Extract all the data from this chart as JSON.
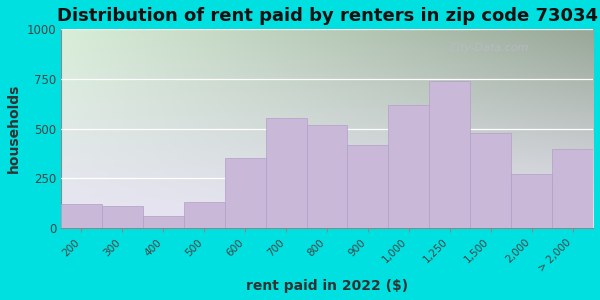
{
  "title": "Distribution of rent paid by renters in zip code 73034",
  "xlabel": "rent paid in 2022 ($)",
  "ylabel": "households",
  "categories": [
    "200",
    "300",
    "400",
    "500",
    "600",
    "700",
    "800",
    "900",
    "1,000",
    "1,250",
    "1,500",
    "2,000",
    "> 2,000"
  ],
  "values": [
    120,
    110,
    60,
    130,
    350,
    555,
    520,
    420,
    620,
    740,
    480,
    270,
    400
  ],
  "bar_color": "#c9b8d8",
  "bar_edge_color": "#b0a0c8",
  "ylim": [
    0,
    1000
  ],
  "yticks": [
    0,
    250,
    500,
    750,
    1000
  ],
  "bg_outer": "#00e0e0",
  "bg_inner_top_left": "#d8eed8",
  "bg_inner_top_right": "#e8f0e8",
  "bg_inner_bottom": "#e8e4f4",
  "title_fontsize": 13,
  "axis_label_fontsize": 10,
  "watermark": "City-Data.com"
}
